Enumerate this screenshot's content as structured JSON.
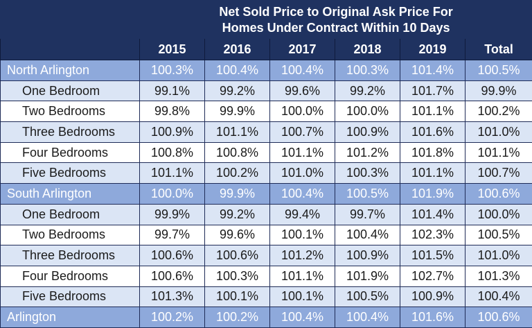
{
  "title_lines": [
    "Net Sold Price to Original Ask Price For",
    "Homes Under Contract Within 10 Days"
  ],
  "columns": [
    "2015",
    "2016",
    "2017",
    "2018",
    "2019",
    "Total"
  ],
  "rows": [
    {
      "label": "North Arlington",
      "type": "region",
      "values": [
        "100.3%",
        "100.4%",
        "100.4%",
        "100.3%",
        "101.4%",
        "100.5%"
      ]
    },
    {
      "label": "One Bedroom",
      "type": "alt",
      "values": [
        "99.1%",
        "99.2%",
        "99.6%",
        "99.2%",
        "101.7%",
        "99.9%"
      ]
    },
    {
      "label": "Two Bedrooms",
      "type": "plain",
      "values": [
        "99.8%",
        "99.9%",
        "100.0%",
        "100.0%",
        "101.1%",
        "100.2%"
      ]
    },
    {
      "label": "Three Bedrooms",
      "type": "alt",
      "values": [
        "100.9%",
        "101.1%",
        "100.7%",
        "100.9%",
        "101.6%",
        "101.0%"
      ]
    },
    {
      "label": "Four Bedrooms",
      "type": "plain",
      "values": [
        "100.8%",
        "100.8%",
        "101.1%",
        "101.2%",
        "101.8%",
        "101.1%"
      ]
    },
    {
      "label": "Five Bedrooms",
      "type": "alt",
      "values": [
        "101.1%",
        "100.2%",
        "101.0%",
        "100.3%",
        "101.1%",
        "100.7%"
      ]
    },
    {
      "label": "South Arlington",
      "type": "region",
      "values": [
        "100.0%",
        "99.9%",
        "100.4%",
        "100.5%",
        "101.9%",
        "100.6%"
      ]
    },
    {
      "label": "One Bedroom",
      "type": "alt",
      "values": [
        "99.9%",
        "99.2%",
        "99.4%",
        "99.7%",
        "101.4%",
        "100.0%"
      ]
    },
    {
      "label": "Two Bedrooms",
      "type": "plain",
      "values": [
        "99.7%",
        "99.6%",
        "100.1%",
        "100.4%",
        "102.3%",
        "100.5%"
      ]
    },
    {
      "label": "Three Bedrooms",
      "type": "alt",
      "values": [
        "100.6%",
        "100.6%",
        "101.2%",
        "100.9%",
        "101.5%",
        "101.0%"
      ]
    },
    {
      "label": "Four Bedrooms",
      "type": "plain",
      "values": [
        "100.6%",
        "100.3%",
        "101.1%",
        "101.9%",
        "102.7%",
        "101.3%"
      ]
    },
    {
      "label": "Five Bedrooms",
      "type": "alt",
      "values": [
        "101.3%",
        "100.1%",
        "100.1%",
        "100.5%",
        "100.9%",
        "100.4%"
      ]
    },
    {
      "label": "Arlington",
      "type": "region",
      "values": [
        "100.2%",
        "100.2%",
        "100.4%",
        "100.4%",
        "101.6%",
        "100.6%"
      ]
    }
  ]
}
